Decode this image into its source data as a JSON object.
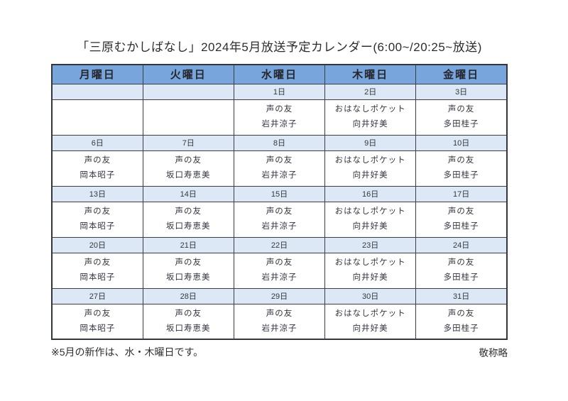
{
  "page": {
    "title": "「三原むかしばなし」2024年5月放送予定カレンダー(6:00~/20:25~放送)",
    "footnote": "※5月の新作は、水・木曜日です。",
    "honorifics_note": "敬称略"
  },
  "colors": {
    "header_bg": "#77a5dc",
    "date_row_bg": "#dce8f6",
    "grid_border": "#3b3e44",
    "text": "#333640"
  },
  "calendar": {
    "weekday_headers": [
      "月曜日",
      "火曜日",
      "水曜日",
      "木曜日",
      "金曜日"
    ],
    "weeks": [
      {
        "dates": [
          "",
          "",
          "1日",
          "2日",
          "3日"
        ],
        "programs": [
          {
            "show": "",
            "performer": ""
          },
          {
            "show": "",
            "performer": ""
          },
          {
            "show": "声の友",
            "performer": "岩井涼子"
          },
          {
            "show": "おはなしポケット",
            "performer": "向井好美"
          },
          {
            "show": "声の友",
            "performer": "多田桂子"
          }
        ]
      },
      {
        "dates": [
          "6日",
          "7日",
          "8日",
          "9日",
          "10日"
        ],
        "programs": [
          {
            "show": "声の友",
            "performer": "岡本昭子"
          },
          {
            "show": "声の友",
            "performer": "坂口寿恵美"
          },
          {
            "show": "声の友",
            "performer": "岩井涼子"
          },
          {
            "show": "おはなしポケット",
            "performer": "向井好美"
          },
          {
            "show": "声の友",
            "performer": "多田桂子"
          }
        ]
      },
      {
        "dates": [
          "13日",
          "14日",
          "15日",
          "16日",
          "17日"
        ],
        "programs": [
          {
            "show": "声の友",
            "performer": "岡本昭子"
          },
          {
            "show": "声の友",
            "performer": "坂口寿恵美"
          },
          {
            "show": "声の友",
            "performer": "岩井涼子"
          },
          {
            "show": "おはなしポケット",
            "performer": "向井好美"
          },
          {
            "show": "声の友",
            "performer": "多田桂子"
          }
        ]
      },
      {
        "dates": [
          "20日",
          "21日",
          "22日",
          "23日",
          "24日"
        ],
        "programs": [
          {
            "show": "声の友",
            "performer": "岡本昭子"
          },
          {
            "show": "声の友",
            "performer": "坂口寿恵美"
          },
          {
            "show": "声の友",
            "performer": "岩井涼子"
          },
          {
            "show": "おはなしポケット",
            "performer": "向井好美"
          },
          {
            "show": "声の友",
            "performer": "多田桂子"
          }
        ]
      },
      {
        "dates": [
          "27日",
          "28日",
          "29日",
          "30日",
          "31日"
        ],
        "programs": [
          {
            "show": "声の友",
            "performer": "岡本昭子"
          },
          {
            "show": "声の友",
            "performer": "坂口寿恵美"
          },
          {
            "show": "声の友",
            "performer": "岩井涼子"
          },
          {
            "show": "おはなしポケット",
            "performer": "向井好美"
          },
          {
            "show": "声の友",
            "performer": "多田桂子"
          }
        ]
      }
    ]
  }
}
